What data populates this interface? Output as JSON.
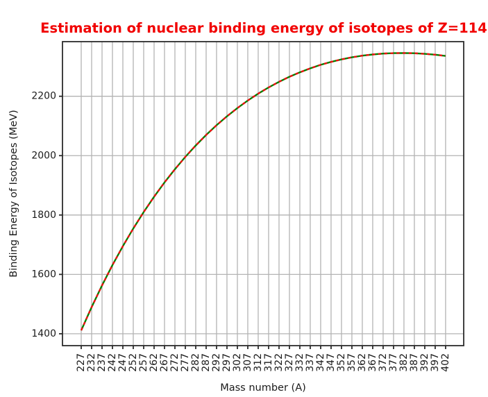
{
  "chart_data": {
    "type": "line",
    "title": "Estimation of nuclear binding energy of isotopes of Z=114",
    "xlabel": "Mass number (A)",
    "ylabel": "Binding Energy of Isotopes (MeV)",
    "x": [
      227,
      232,
      237,
      242,
      247,
      252,
      257,
      262,
      267,
      272,
      277,
      282,
      287,
      292,
      297,
      302,
      307,
      312,
      317,
      322,
      327,
      332,
      337,
      342,
      347,
      352,
      357,
      362,
      367,
      372,
      377,
      382,
      387,
      392,
      397,
      402
    ],
    "series": [
      {
        "name": "binding-energy-solid-line",
        "color": "#008000",
        "style": "solid",
        "values": [
          1411.4,
          1489.8,
          1563.0,
          1631.4,
          1695.1,
          1754.6,
          1810.1,
          1861.7,
          1909.8,
          1954.4,
          1996.0,
          2034.3,
          2069.8,
          2102.6,
          2132.7,
          2160.3,
          2185.7,
          2208.9,
          2229.8,
          2248.7,
          2265.7,
          2280.7,
          2293.9,
          2305.8,
          2315.8,
          2324.1,
          2331.2,
          2336.8,
          2340.8,
          2343.7,
          2345.3,
          2345.7,
          2345.0,
          2342.9,
          2340.0,
          2335.8
        ]
      },
      {
        "name": "binding-energy-dashed-line",
        "color": "#ee1111",
        "style": "dashed",
        "values": [
          1411.4,
          1489.8,
          1563.0,
          1631.4,
          1695.1,
          1754.6,
          1810.1,
          1861.7,
          1909.8,
          1954.4,
          1996.0,
          2034.3,
          2069.8,
          2102.6,
          2132.7,
          2160.3,
          2185.7,
          2208.9,
          2229.8,
          2248.7,
          2265.7,
          2280.7,
          2293.9,
          2305.8,
          2315.8,
          2324.1,
          2331.2,
          2336.8,
          2340.8,
          2343.7,
          2345.3,
          2345.7,
          2345.0,
          2342.9,
          2340.0,
          2335.8
        ]
      }
    ],
    "x_tick_labels": [
      "227",
      "232",
      "237",
      "242",
      "247",
      "252",
      "257",
      "262",
      "267",
      "272",
      "277",
      "282",
      "287",
      "292",
      "297",
      "302",
      "307",
      "312",
      "317",
      "322",
      "327",
      "332",
      "337",
      "342",
      "347",
      "352",
      "357",
      "362",
      "367",
      "372",
      "377",
      "382",
      "387",
      "392",
      "397",
      "402"
    ],
    "y_ticks": [
      1400,
      1600,
      1800,
      2000,
      2200
    ],
    "xlim": [
      218.0,
      410.7
    ],
    "ylim": [
      1360,
      2384
    ],
    "grid": true,
    "legend": "none",
    "title_color": "#f10000",
    "grid_color": "#b3b3b3",
    "spine_color": "#2b2b2b",
    "tick_label_color": "#1a1a1a"
  }
}
